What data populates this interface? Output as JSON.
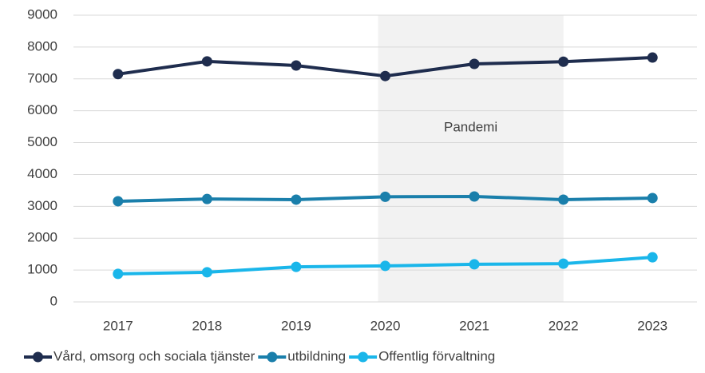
{
  "chart_data": {
    "type": "line",
    "categories": [
      "2017",
      "2018",
      "2019",
      "2020",
      "2021",
      "2022",
      "2023"
    ],
    "series": [
      {
        "name": "Vård, omsorg och sociala tjänster",
        "color": "#1f2d4e",
        "values": [
          7150,
          7550,
          7420,
          7090,
          7470,
          7540,
          7670
        ]
      },
      {
        "name": "utbildning",
        "color": "#1a7fab",
        "values": [
          3160,
          3230,
          3210,
          3300,
          3310,
          3210,
          3260
        ]
      },
      {
        "name": "Offentlig förvaltning",
        "color": "#1ab6ea",
        "values": [
          880,
          930,
          1100,
          1130,
          1180,
          1200,
          1400
        ]
      }
    ],
    "ylim": [
      0,
      9000
    ],
    "yticks": [
      0,
      1000,
      2000,
      3000,
      4000,
      5000,
      6000,
      7000,
      8000,
      9000
    ],
    "grid": true,
    "shaded_region": {
      "from": "2020",
      "to": "2022",
      "label": "Pandemi",
      "color": "#f2f2f2"
    },
    "legend": "bottom"
  }
}
